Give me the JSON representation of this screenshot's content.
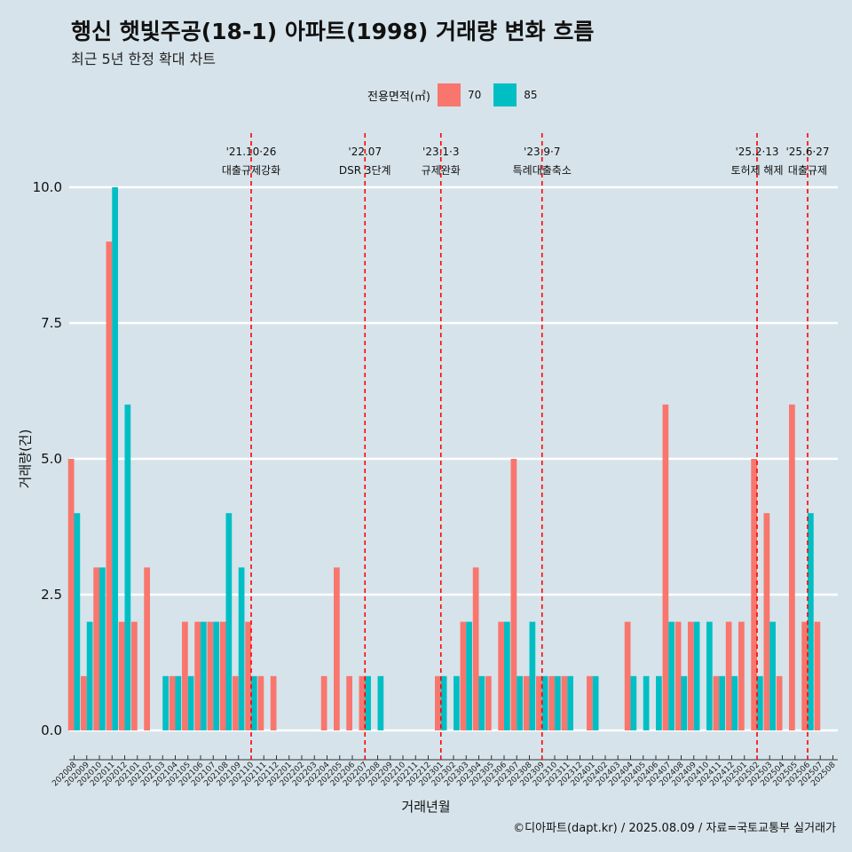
{
  "title": "행신 햇빛주공(18-1) 아파트(1998) 거래량 변화 흐름",
  "subtitle": "최근 5년 한정 확대 차트",
  "caption": "©디아파트(dapt.kr) / 2025.08.09 / 자료=국토교통부 실거래가",
  "colors": {
    "background": "#d6e3ea",
    "series70": "#f8766d",
    "series85": "#00bfc4",
    "event_line": "#ff0000"
  },
  "legend": {
    "title": "전용면적(㎡)",
    "items": [
      "70",
      "85"
    ]
  },
  "chart_data": {
    "type": "bar",
    "title": "행신 햇빛주공(18-1) 아파트(1998) 거래량 변화 흐름",
    "xlabel": "거래년월",
    "ylabel": "거래량(건)",
    "ylim": [
      0,
      10
    ],
    "yticks": [
      "0.0",
      "2.5",
      "5.0",
      "7.5",
      "10.0"
    ],
    "ytick_values": [
      0,
      2.5,
      5,
      7.5,
      10
    ],
    "categories": [
      "202008",
      "202009",
      "202010",
      "202011",
      "202012",
      "202101",
      "202102",
      "202103",
      "202104",
      "202105",
      "202106",
      "202107",
      "202108",
      "202109",
      "202110",
      "202111",
      "202112",
      "202201",
      "202202",
      "202203",
      "202204",
      "202205",
      "202206",
      "202207",
      "202208",
      "202209",
      "202210",
      "202211",
      "202212",
      "202301",
      "202302",
      "202303",
      "202304",
      "202305",
      "202306",
      "202307",
      "202308",
      "202309",
      "202310",
      "202311",
      "202312",
      "202401",
      "202402",
      "202403",
      "202404",
      "202405",
      "202406",
      "202407",
      "202408",
      "202409",
      "202410",
      "202411",
      "202412",
      "202501",
      "202502",
      "202503",
      "202504",
      "202505",
      "202506",
      "202507",
      "202508"
    ],
    "series": [
      {
        "name": "70",
        "values": [
          5,
          1,
          3,
          9,
          2,
          2,
          3,
          0,
          1,
          2,
          2,
          2,
          2,
          1,
          2,
          1,
          1,
          0,
          0,
          0,
          1,
          3,
          1,
          1,
          0,
          0,
          0,
          0,
          0,
          1,
          0,
          2,
          3,
          1,
          2,
          5,
          1,
          1,
          1,
          1,
          0,
          1,
          0,
          0,
          2,
          0,
          0,
          6,
          2,
          2,
          0,
          1,
          2,
          2,
          5,
          4,
          1,
          6,
          2,
          2,
          0
        ]
      },
      {
        "name": "85",
        "values": [
          4,
          2,
          3,
          10,
          6,
          0,
          0,
          1,
          1,
          1,
          2,
          2,
          4,
          3,
          1,
          0,
          0,
          0,
          0,
          0,
          0,
          0,
          0,
          1,
          1,
          0,
          0,
          0,
          0,
          1,
          1,
          2,
          1,
          0,
          2,
          1,
          2,
          1,
          1,
          1,
          0,
          1,
          0,
          0,
          1,
          1,
          1,
          2,
          1,
          2,
          2,
          1,
          1,
          0,
          1,
          2,
          0,
          0,
          4,
          0,
          0
        ]
      }
    ],
    "events": [
      {
        "date": "'21.10·26",
        "label": "대출규제강화",
        "month": "202110"
      },
      {
        "date": "'22.07",
        "label": "DSR 3단계",
        "month": "202207"
      },
      {
        "date": "'23.1·3",
        "label": "규제완화",
        "month": "202301"
      },
      {
        "date": "'23.9·7",
        "label": "특례대출축소",
        "month": "202309"
      },
      {
        "date": "'25.2·13",
        "label": "토허제 해제",
        "month": "202502"
      },
      {
        "date": "'25.6·27",
        "label": "대출규제",
        "month": "202506"
      }
    ]
  }
}
